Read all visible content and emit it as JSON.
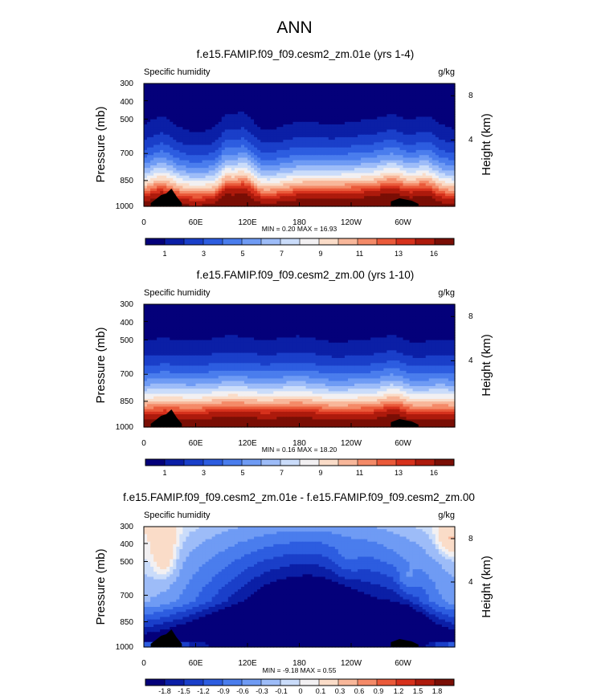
{
  "main_title": "ANN",
  "chart_data": [
    {
      "type": "heatmap",
      "title": "f.e15.FAMIP.f09_f09.cesm2_zm.01e (yrs 1-4)",
      "left_label": "Specific humidity",
      "units": "g/kg",
      "ylabel": "Pressure (mb)",
      "ylabel_right": "Height (km)",
      "pressure_ticks": [
        "300",
        "400",
        "500",
        "700",
        "850",
        "1000"
      ],
      "height_ticks": [
        "8",
        "4"
      ],
      "x_ticks": [
        "0",
        "60E",
        "120E",
        "180",
        "120W",
        "60W"
      ],
      "stats": "MIN =  0.20  MAX =  16.93",
      "colorbar_labels": [
        "1",
        "3",
        "5",
        "7",
        "9",
        "11",
        "13",
        "16"
      ],
      "levels": [
        1,
        2,
        3,
        4,
        5,
        6,
        7,
        8,
        9,
        10,
        11,
        12,
        13,
        14,
        16
      ],
      "vmin": 0.2,
      "vmax": 16.93
    },
    {
      "type": "heatmap",
      "title": "f.e15.FAMIP.f09_f09.cesm2_zm.00 (yrs 1-10)",
      "left_label": "Specific humidity",
      "units": "g/kg",
      "ylabel": "Pressure (mb)",
      "ylabel_right": "Height (km)",
      "pressure_ticks": [
        "300",
        "400",
        "500",
        "700",
        "850",
        "1000"
      ],
      "height_ticks": [
        "8",
        "4"
      ],
      "x_ticks": [
        "0",
        "60E",
        "120E",
        "180",
        "120W",
        "60W"
      ],
      "stats": "MIN =  0.16  MAX =  18.20",
      "colorbar_labels": [
        "1",
        "3",
        "5",
        "7",
        "9",
        "11",
        "13",
        "16"
      ],
      "levels": [
        1,
        2,
        3,
        4,
        5,
        6,
        7,
        8,
        9,
        10,
        11,
        12,
        13,
        14,
        16
      ],
      "vmin": 0.16,
      "vmax": 18.2
    },
    {
      "type": "heatmap",
      "title": "f.e15.FAMIP.f09_f09.cesm2_zm.01e - f.e15.FAMIP.f09_f09.cesm2_zm.00",
      "left_label": "Specific humidity",
      "units": "g/kg",
      "ylabel": "Pressure (mb)",
      "ylabel_right": "Height (km)",
      "pressure_ticks": [
        "300",
        "400",
        "500",
        "700",
        "850",
        "1000"
      ],
      "height_ticks": [
        "8",
        "4"
      ],
      "x_ticks": [
        "0",
        "60E",
        "120E",
        "180",
        "120W",
        "60W"
      ],
      "stats": "MIN = -9.18  MAX =  0.55",
      "colorbar_labels": [
        "-1.8",
        "-1.5",
        "-1.2",
        "-0.9",
        "-0.6",
        "-0.3",
        "-0.1",
        "0",
        "0.1",
        "0.3",
        "0.6",
        "0.9",
        "1.2",
        "1.5",
        "1.8"
      ],
      "levels": [
        -1.8,
        -1.5,
        -1.2,
        -0.9,
        -0.6,
        -0.3,
        -0.1,
        0,
        0.1,
        0.3,
        0.6,
        0.9,
        1.2,
        1.5,
        1.8
      ],
      "vmin": -9.18,
      "vmax": 0.55
    }
  ],
  "palette": [
    "#04007a",
    "#0b1fa6",
    "#1a3fc9",
    "#2d5de0",
    "#4a7ded",
    "#6f9bf4",
    "#9dbcf8",
    "#cadcfa",
    "#f2f0f2",
    "#fadcc8",
    "#f8b79a",
    "#f48a68",
    "#ea5a3a",
    "#d6311c",
    "#ad1a0c",
    "#7a0e05"
  ]
}
